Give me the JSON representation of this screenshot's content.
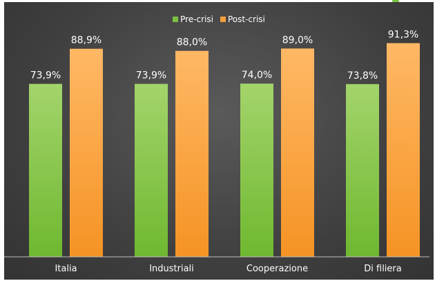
{
  "chart_data": {
    "type": "bar",
    "title": "",
    "xlabel": "",
    "ylabel": "",
    "ylim": [
      0,
      100
    ],
    "grid": false,
    "legend_position": "top-center",
    "categories": [
      "Italia",
      "Industriali",
      "Cooperazione",
      "Di filiera"
    ],
    "series": [
      {
        "name": "Pre-crisi",
        "values": [
          73.9,
          73.9,
          74.0,
          73.8
        ],
        "labels": [
          "73,9%",
          "73,9%",
          "74,0%",
          "73,8%"
        ],
        "color": "#7cc242"
      },
      {
        "name": "Post-crisi",
        "values": [
          88.9,
          88.0,
          89.0,
          91.3
        ],
        "labels": [
          "88,9%",
          "88,0%",
          "89,0%",
          "91,3%"
        ],
        "color": "#f7a03b"
      }
    ]
  },
  "colors": {
    "background": "#3e3e3e",
    "text": "#ffffff",
    "axis": "#bfbfbf",
    "accent": "#7cc242"
  }
}
